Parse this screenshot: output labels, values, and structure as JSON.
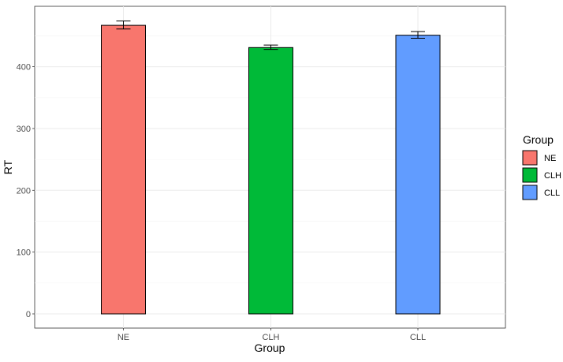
{
  "chart_data": {
    "type": "bar",
    "categories": [
      "NE",
      "CLH",
      "CLL"
    ],
    "values": [
      467,
      431,
      451
    ],
    "error_bars": [
      {
        "category": "NE",
        "low": 461,
        "high": 474
      },
      {
        "category": "CLH",
        "low": 428,
        "high": 435
      },
      {
        "category": "CLL",
        "low": 446,
        "high": 457
      }
    ],
    "colors": [
      "#F8766D",
      "#00BA38",
      "#619CFF"
    ],
    "xlabel": "Group",
    "ylabel": "RT",
    "yticks": [
      0,
      100,
      200,
      300,
      400
    ],
    "ylim": [
      0,
      500
    ],
    "grid": true,
    "legend": {
      "title": "Group",
      "position": "right",
      "entries": [
        "NE",
        "CLH",
        "CLL"
      ]
    }
  }
}
